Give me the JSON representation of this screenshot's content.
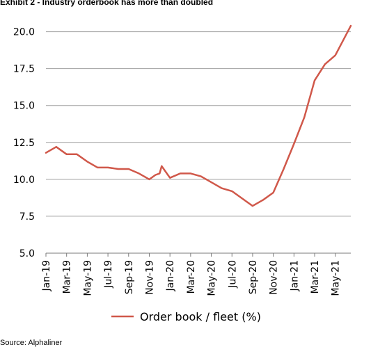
{
  "title": "Exhibit 2 - Industry orderbook has more than doubled",
  "source": "Source: Alphaliner",
  "colors": {
    "series": "#D0584A",
    "grid": "#a0a0a0",
    "axis": "#000000"
  },
  "chart_data": {
    "type": "line",
    "ylim": [
      5.0,
      20.5
    ],
    "yticks": [
      "5.0",
      "7.5",
      "10.0",
      "12.5",
      "15.0",
      "17.5",
      "20.0"
    ],
    "ytick_values": [
      5.0,
      7.5,
      10.0,
      12.5,
      15.0,
      17.5,
      20.0
    ],
    "xticks": [
      "Jan-19",
      "Mar-19",
      "May-19",
      "Jul-19",
      "Sep-19",
      "Nov-19",
      "Jan-20",
      "Mar-20",
      "May-20",
      "Jul-20",
      "Sep-20",
      "Nov-20",
      "Jan-21",
      "Mar-21",
      "May-21"
    ],
    "xtick_months": [
      0,
      2,
      4,
      6,
      8,
      10,
      12,
      14,
      16,
      18,
      20,
      22,
      24,
      26,
      28
    ],
    "xlim_months": [
      0,
      29.5
    ],
    "grid": "horizontal",
    "legend_position": "bottom",
    "series": [
      {
        "name": "Order book / fleet (%)",
        "x_months": [
          0,
          1,
          2,
          3,
          4,
          5,
          6,
          7,
          8,
          9,
          10,
          10.6,
          11,
          11.2,
          11.5,
          12,
          13,
          14,
          15,
          16,
          17,
          18,
          19,
          20,
          21,
          22,
          23,
          24,
          25,
          26,
          27,
          28,
          29.5
        ],
        "values": [
          11.8,
          12.2,
          11.7,
          11.7,
          11.2,
          10.8,
          10.8,
          10.7,
          10.7,
          10.4,
          10.0,
          10.3,
          10.4,
          10.9,
          10.6,
          10.1,
          10.4,
          10.4,
          10.2,
          9.8,
          9.4,
          9.2,
          8.7,
          8.2,
          8.6,
          9.1,
          10.7,
          12.4,
          14.2,
          16.7,
          17.8,
          18.4,
          20.4
        ]
      }
    ]
  }
}
